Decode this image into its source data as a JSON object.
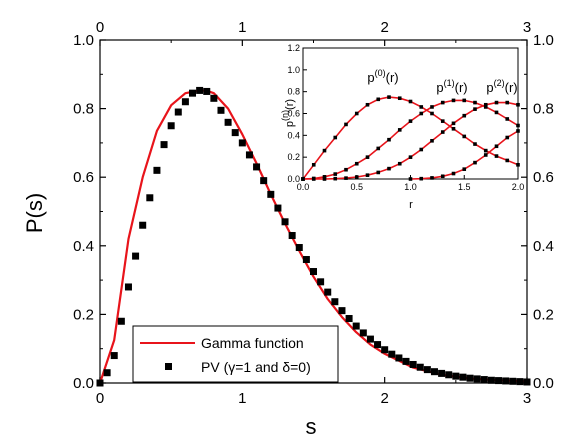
{
  "chart_data": [
    {
      "type": "line",
      "xlabel": "s",
      "ylabel": "P(s)",
      "xlim": [
        0,
        3
      ],
      "ylim": [
        0,
        1.0
      ],
      "x_ticks": [
        "0",
        "1",
        "2",
        "3"
      ],
      "x_ticks_top": [
        "0",
        "1",
        "2",
        "3"
      ],
      "y_ticks": [
        "0.0",
        "0.2",
        "0.4",
        "0.6",
        "0.8",
        "1.0"
      ],
      "y_ticks_right": [
        "0.0",
        "0.2",
        "0.4",
        "0.6",
        "0.8",
        "1.0"
      ],
      "grid": false,
      "legend_position": "bottom-left",
      "series": [
        {
          "name": "Gamma function",
          "style": "line",
          "color": "#e8141b",
          "x": [
            0.0,
            0.1,
            0.2,
            0.3,
            0.4,
            0.5,
            0.6,
            0.7,
            0.75,
            0.8,
            0.9,
            1.0,
            1.1,
            1.2,
            1.3,
            1.4,
            1.5,
            1.6,
            1.7,
            1.8,
            1.9,
            2.0,
            2.2,
            2.4,
            2.6,
            2.8,
            3.0
          ],
          "y": [
            0.0,
            0.125,
            0.42,
            0.6,
            0.735,
            0.81,
            0.845,
            0.853,
            0.852,
            0.845,
            0.8,
            0.725,
            0.64,
            0.55,
            0.465,
            0.385,
            0.31,
            0.245,
            0.192,
            0.148,
            0.112,
            0.085,
            0.045,
            0.024,
            0.013,
            0.008,
            0.005
          ]
        },
        {
          "name": "PV (γ=1 and δ=0)",
          "style": "markers",
          "marker": "square",
          "color": "#000000",
          "x": [
            0.0,
            0.05,
            0.1,
            0.15,
            0.2,
            0.25,
            0.3,
            0.35,
            0.4,
            0.45,
            0.5,
            0.55,
            0.6,
            0.65,
            0.7,
            0.75,
            0.8,
            0.85,
            0.9,
            0.95,
            1.0,
            1.05,
            1.1,
            1.15,
            1.2,
            1.25,
            1.3,
            1.35,
            1.4,
            1.45,
            1.5,
            1.55,
            1.6,
            1.65,
            1.7,
            1.75,
            1.8,
            1.85,
            1.9,
            1.95,
            2.0,
            2.05,
            2.1,
            2.15,
            2.2,
            2.25,
            2.3,
            2.35,
            2.4,
            2.45,
            2.5,
            2.55,
            2.6,
            2.65,
            2.7,
            2.75,
            2.8,
            2.85,
            2.9,
            2.95,
            3.0
          ],
          "y": [
            0.0,
            0.03,
            0.08,
            0.18,
            0.28,
            0.37,
            0.46,
            0.54,
            0.62,
            0.695,
            0.75,
            0.79,
            0.82,
            0.845,
            0.853,
            0.85,
            0.83,
            0.795,
            0.76,
            0.73,
            0.7,
            0.665,
            0.63,
            0.59,
            0.55,
            0.51,
            0.47,
            0.43,
            0.395,
            0.36,
            0.325,
            0.295,
            0.265,
            0.237,
            0.211,
            0.188,
            0.166,
            0.146,
            0.128,
            0.112,
            0.097,
            0.084,
            0.073,
            0.063,
            0.054,
            0.046,
            0.039,
            0.033,
            0.028,
            0.024,
            0.02,
            0.017,
            0.014,
            0.012,
            0.01,
            0.008,
            0.007,
            0.006,
            0.005,
            0.004,
            0.003
          ]
        }
      ]
    },
    {
      "type": "line",
      "xlabel": "r",
      "ylabel": "p(n)(r)",
      "ylabel_parts": {
        "base": "p",
        "sup": "(n)",
        "arg": "(r)"
      },
      "xlim": [
        0,
        2.0
      ],
      "ylim": [
        0,
        1.2
      ],
      "x_ticks": [
        "0.0",
        "0.5",
        "1.0",
        "1.5",
        "2.0"
      ],
      "y_ticks": [
        "0.0",
        "0.2",
        "0.4",
        "0.6",
        "0.8",
        "1.0",
        "1.2"
      ],
      "grid": false,
      "curve_labels": [
        {
          "base": "p",
          "sup": "(0)",
          "arg": "(r)"
        },
        {
          "base": "p",
          "sup": "(1)",
          "arg": "(r)"
        },
        {
          "base": "p",
          "sup": "(2)",
          "arg": "(r)"
        }
      ],
      "series": [
        {
          "label_index": 0,
          "x": [
            0.0,
            0.1,
            0.2,
            0.3,
            0.4,
            0.5,
            0.6,
            0.7,
            0.8,
            0.9,
            1.0,
            1.1,
            1.2,
            1.3,
            1.4,
            1.5,
            1.6,
            1.7,
            1.8,
            1.9,
            2.0
          ],
          "y": [
            0.0,
            0.13,
            0.26,
            0.38,
            0.5,
            0.6,
            0.68,
            0.73,
            0.75,
            0.74,
            0.71,
            0.66,
            0.6,
            0.53,
            0.46,
            0.39,
            0.32,
            0.26,
            0.21,
            0.17,
            0.13
          ]
        },
        {
          "label_index": 1,
          "x": [
            0.0,
            0.1,
            0.2,
            0.3,
            0.4,
            0.5,
            0.6,
            0.7,
            0.8,
            0.9,
            1.0,
            1.1,
            1.2,
            1.3,
            1.4,
            1.5,
            1.6,
            1.7,
            1.8,
            1.9,
            2.0
          ],
          "y": [
            0.0,
            0.005,
            0.02,
            0.045,
            0.085,
            0.14,
            0.2,
            0.28,
            0.36,
            0.45,
            0.53,
            0.6,
            0.66,
            0.7,
            0.72,
            0.72,
            0.7,
            0.66,
            0.61,
            0.55,
            0.49
          ]
        },
        {
          "label_index": 2,
          "x": [
            0.0,
            0.1,
            0.2,
            0.3,
            0.4,
            0.5,
            0.6,
            0.7,
            0.8,
            0.9,
            1.0,
            1.1,
            1.2,
            1.3,
            1.4,
            1.5,
            1.6,
            1.7,
            1.8,
            1.9,
            2.0
          ],
          "y": [
            0.0,
            0.0,
            0.0,
            0.003,
            0.008,
            0.018,
            0.035,
            0.06,
            0.095,
            0.14,
            0.2,
            0.27,
            0.35,
            0.43,
            0.51,
            0.58,
            0.64,
            0.68,
            0.7,
            0.7,
            0.68
          ]
        },
        {
          "label_index": null,
          "x": [
            1.0,
            1.1,
            1.2,
            1.3,
            1.4,
            1.5,
            1.6,
            1.7,
            1.8,
            1.9,
            2.0
          ],
          "y": [
            0.0,
            0.003,
            0.01,
            0.025,
            0.05,
            0.09,
            0.15,
            0.22,
            0.3,
            0.38,
            0.44
          ]
        }
      ],
      "line_color": "#e8141b",
      "marker_color": "#000000"
    }
  ]
}
